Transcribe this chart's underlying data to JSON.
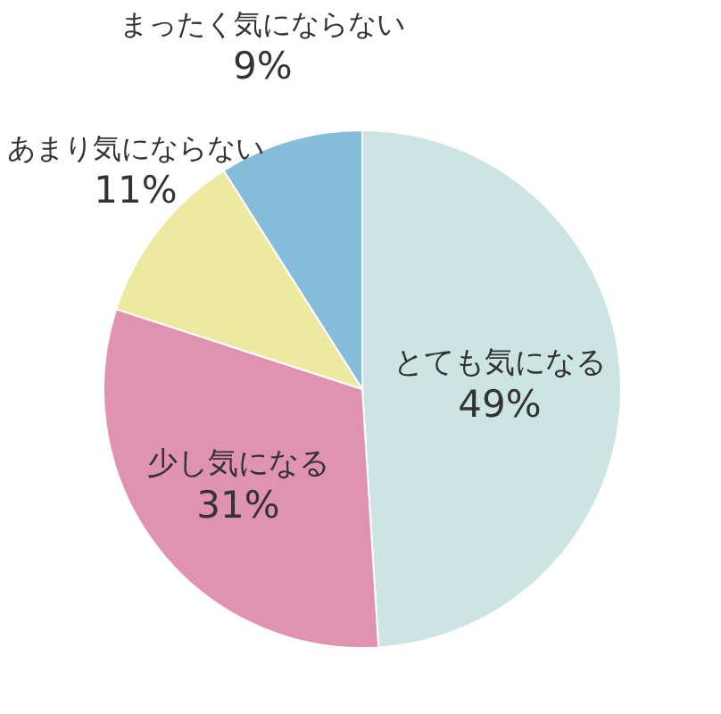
{
  "chart_data": {
    "type": "pie",
    "categories": [
      "とても気になる",
      "少し気になる",
      "あまり気にならない",
      "まったく気にならない"
    ],
    "values": [
      49,
      31,
      11,
      9
    ],
    "colors": [
      "#cce5e3",
      "#e092b1",
      "#ede9a0",
      "#85bcd9"
    ],
    "value_labels": [
      "49%",
      "31%",
      "11%",
      "9%"
    ]
  }
}
